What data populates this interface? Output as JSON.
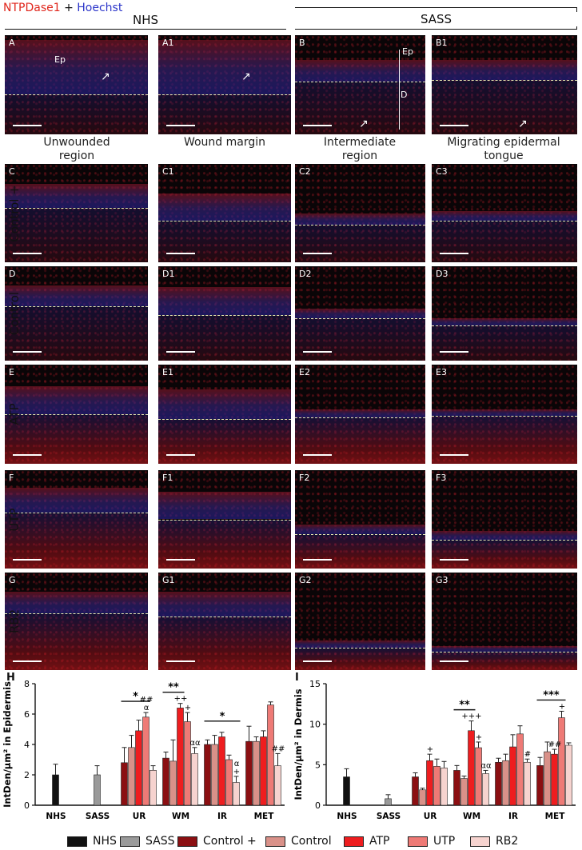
{
  "legend_title": {
    "red": "NTPDase1",
    "plus": " + ",
    "blue": "Hoechst"
  },
  "groups": {
    "left": "NHS",
    "right": "SASS"
  },
  "columns": [
    {
      "line1": "Unwounded",
      "line2": "region"
    },
    {
      "line1": "Wound margin",
      "line2": ""
    },
    {
      "line1": "Intermediate",
      "line2": "region"
    },
    {
      "line1": "Migrating epidermal",
      "line2": "tongue"
    }
  ],
  "rows": [
    {
      "label": "",
      "panels": [
        "A",
        "A1",
        "B",
        "B1"
      ]
    },
    {
      "label": "Control +",
      "panels": [
        "C",
        "C1",
        "C2",
        "C3"
      ]
    },
    {
      "label": "Control",
      "panels": [
        "D",
        "D1",
        "D2",
        "D3"
      ]
    },
    {
      "label": "ATP",
      "panels": [
        "E",
        "E1",
        "E2",
        "E3"
      ]
    },
    {
      "label": "UTP",
      "panels": [
        "F",
        "F1",
        "F2",
        "F3"
      ]
    },
    {
      "label": "RB2",
      "panels": [
        "G",
        "G1",
        "G2",
        "G3"
      ]
    }
  ],
  "panel_tags": {
    "ep_a": "Ep",
    "ep_b": "Ep",
    "d_b": "D"
  },
  "colors": {
    "NHS": "#111111",
    "SASS": "#9a9a9a",
    "Control +": "#8b0f12",
    "Control": "#d99189",
    "ATP": "#ee1d1f",
    "UTP": "#ee7a76",
    "RB2": "#f6d3cf"
  },
  "chart_data": [
    {
      "type": "bar",
      "panel_label": "H",
      "ylabel": "IntDen/µm² in Epidermis",
      "ylim": [
        0,
        8
      ],
      "yticks": [
        "0",
        "2",
        "4",
        "6",
        "8"
      ],
      "categories": [
        "NHS",
        "SASS",
        "UR",
        "WM",
        "IR",
        "MET"
      ],
      "series": [
        {
          "name": "NHS",
          "values": [
            2.0,
            null,
            null,
            null,
            null,
            null
          ],
          "errors": [
            0.7,
            null,
            null,
            null,
            null,
            null
          ]
        },
        {
          "name": "SASS",
          "values": [
            null,
            2.0,
            null,
            null,
            null,
            null
          ],
          "errors": [
            null,
            0.6,
            null,
            null,
            null,
            null
          ]
        },
        {
          "name": "Control +",
          "values": [
            null,
            null,
            2.8,
            3.1,
            4.0,
            4.2
          ],
          "errors": [
            null,
            null,
            1.0,
            0.4,
            0.3,
            1.0
          ]
        },
        {
          "name": "Control",
          "values": [
            null,
            null,
            3.8,
            2.9,
            4.0,
            4.2
          ],
          "errors": [
            null,
            null,
            0.8,
            1.4,
            0.6,
            0.3
          ]
        },
        {
          "name": "ATP",
          "values": [
            null,
            null,
            4.9,
            6.4,
            4.5,
            4.5
          ],
          "errors": [
            null,
            null,
            0.7,
            0.3,
            0.3,
            0.4
          ]
        },
        {
          "name": "UTP",
          "values": [
            null,
            null,
            5.8,
            5.5,
            3.0,
            6.6
          ],
          "errors": [
            null,
            null,
            0.3,
            0.6,
            0.3,
            0.2
          ]
        },
        {
          "name": "RB2",
          "values": [
            null,
            null,
            2.3,
            3.4,
            1.5,
            2.6
          ],
          "errors": [
            null,
            null,
            0.3,
            0.4,
            0.4,
            0.8
          ]
        }
      ],
      "annotations": [
        {
          "cat": 2,
          "series": 5,
          "text": "##\nα"
        },
        {
          "cat": 3,
          "series": 4,
          "text": "++"
        },
        {
          "cat": 3,
          "series": 5,
          "text": "+"
        },
        {
          "cat": 3,
          "series": 6,
          "text": "αα"
        },
        {
          "cat": 4,
          "series": 6,
          "text": "α\n+"
        },
        {
          "cat": 5,
          "series": 6,
          "text": "##"
        }
      ],
      "brackets": [
        {
          "cat": 2,
          "from": 2,
          "to": 5,
          "text": "*"
        },
        {
          "cat": 3,
          "from": 2,
          "to": 4,
          "text": "**"
        },
        {
          "cat": 4,
          "from": 2,
          "to": 6,
          "text": "*"
        }
      ]
    },
    {
      "type": "bar",
      "panel_label": "I",
      "ylabel": "IntDen/µm² in Dermis",
      "ylim": [
        0,
        15
      ],
      "yticks": [
        "0",
        "5",
        "10",
        "15"
      ],
      "categories": [
        "NHS",
        "SASS",
        "UR",
        "WM",
        "IR",
        "MET"
      ],
      "series": [
        {
          "name": "NHS",
          "values": [
            3.5,
            null,
            null,
            null,
            null,
            null
          ],
          "errors": [
            1.0,
            null,
            null,
            null,
            null,
            null
          ]
        },
        {
          "name": "SASS",
          "values": [
            null,
            0.8,
            null,
            null,
            null,
            null
          ],
          "errors": [
            null,
            0.5,
            null,
            null,
            null,
            null
          ]
        },
        {
          "name": "Control +",
          "values": [
            null,
            null,
            3.5,
            4.3,
            5.3,
            4.9
          ],
          "errors": [
            null,
            null,
            0.5,
            0.6,
            0.5,
            1.0
          ]
        },
        {
          "name": "Control",
          "values": [
            null,
            null,
            1.9,
            3.3,
            5.5,
            6.6
          ],
          "errors": [
            null,
            null,
            0.2,
            0.3,
            0.8,
            1.2
          ]
        },
        {
          "name": "ATP",
          "values": [
            null,
            null,
            5.5,
            9.2,
            7.2,
            6.3
          ],
          "errors": [
            null,
            null,
            0.8,
            1.2,
            1.5,
            0.6
          ]
        },
        {
          "name": "UTP",
          "values": [
            null,
            null,
            4.8,
            7.1,
            8.8,
            10.8
          ],
          "errors": [
            null,
            null,
            0.9,
            0.7,
            1.0,
            0.8
          ]
        },
        {
          "name": "RB2",
          "values": [
            null,
            null,
            4.6,
            3.9,
            5.3,
            7.4
          ],
          "errors": [
            null,
            null,
            0.8,
            0.4,
            0.4,
            0.3
          ]
        }
      ],
      "annotations": [
        {
          "cat": 2,
          "series": 4,
          "text": "+"
        },
        {
          "cat": 3,
          "series": 4,
          "text": "+++"
        },
        {
          "cat": 3,
          "series": 5,
          "text": "+"
        },
        {
          "cat": 3,
          "series": 6,
          "text": "αα"
        },
        {
          "cat": 4,
          "series": 6,
          "text": "#"
        },
        {
          "cat": 5,
          "series": 4,
          "text": "##"
        },
        {
          "cat": 5,
          "series": 5,
          "text": "+"
        }
      ],
      "brackets": [
        {
          "cat": 3,
          "from": 2,
          "to": 4,
          "text": "**"
        },
        {
          "cat": 5,
          "from": 2,
          "to": 5,
          "text": "***"
        }
      ]
    }
  ],
  "legend": [
    "NHS",
    "SASS",
    "Control +",
    "Control",
    "ATP",
    "UTP",
    "RB2"
  ]
}
